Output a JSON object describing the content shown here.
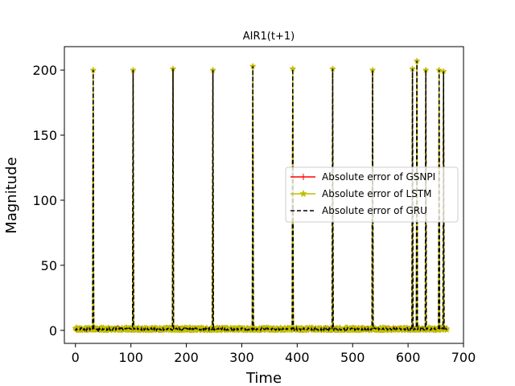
{
  "chart_data": {
    "type": "line",
    "title": "AIR1(t+1)",
    "xlabel": "Time",
    "ylabel": "Magnitude",
    "xlim": [
      -20,
      700
    ],
    "ylim": [
      -10,
      218
    ],
    "xticks": [
      0,
      100,
      200,
      300,
      400,
      500,
      600,
      700
    ],
    "yticks": [
      0,
      50,
      100,
      150,
      200
    ],
    "grid": false,
    "legend_position": "right",
    "series": [
      {
        "name": "Absolute error of GSNPI",
        "color": "#ff0000",
        "style": "solid",
        "marker": "plus"
      },
      {
        "name": "Absolute error of LSTM",
        "color": "#bfbf00",
        "style": "solid",
        "marker": "star"
      },
      {
        "name": "Absolute error of GRU",
        "color": "#000000",
        "style": "dashed",
        "marker": "none"
      }
    ],
    "x_range": [
      0,
      670
    ],
    "baseline_level": 1,
    "spikes": [
      {
        "x": 32,
        "value": 200
      },
      {
        "x": 104,
        "value": 200
      },
      {
        "x": 176,
        "value": 201
      },
      {
        "x": 248,
        "value": 200
      },
      {
        "x": 320,
        "value": 203
      },
      {
        "x": 392,
        "value": 201
      },
      {
        "x": 464,
        "value": 201
      },
      {
        "x": 536,
        "value": 200
      },
      {
        "x": 608,
        "value": 201
      },
      {
        "x": 616,
        "value": 207
      },
      {
        "x": 632,
        "value": 200
      },
      {
        "x": 656,
        "value": 200
      },
      {
        "x": 664,
        "value": 199
      }
    ]
  }
}
